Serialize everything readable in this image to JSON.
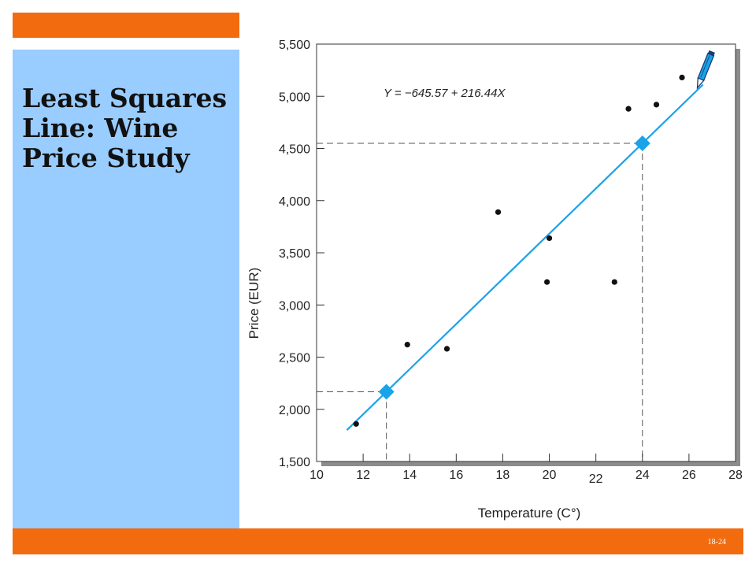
{
  "slide": {
    "title": "Least Squares Line: Wine Price Study",
    "page_number": "18-24",
    "colors": {
      "accent_bar": "#f26b0f",
      "left_panel": "#99ccff",
      "regression_line": "#1aa3e8"
    }
  },
  "chart_data": {
    "type": "scatter",
    "title": "",
    "xlabel": "Temperature (C°)",
    "ylabel": "Price (EUR)",
    "xlim": [
      10,
      28
    ],
    "ylim": [
      1500,
      5500
    ],
    "xticks": [
      10,
      12,
      14,
      16,
      18,
      20,
      22,
      24,
      26,
      28
    ],
    "xtick_labels": [
      "10",
      "12",
      "14",
      "16",
      "18",
      "20",
      "22",
      "24",
      "26",
      "28"
    ],
    "yticks": [
      1500,
      2000,
      2500,
      3000,
      3500,
      4000,
      4500,
      5000,
      5500
    ],
    "ytick_labels": [
      "1,500",
      "2,000",
      "2,500",
      "3,000",
      "3,500",
      "4,000",
      "4,500",
      "5,000",
      "5,500"
    ],
    "grid": false,
    "points": [
      {
        "x": 11.7,
        "y": 1860
      },
      {
        "x": 13.9,
        "y": 2620
      },
      {
        "x": 15.6,
        "y": 2580
      },
      {
        "x": 17.8,
        "y": 3890
      },
      {
        "x": 20.0,
        "y": 3640
      },
      {
        "x": 19.9,
        "y": 3220
      },
      {
        "x": 22.8,
        "y": 3220
      },
      {
        "x": 23.4,
        "y": 4880
      },
      {
        "x": 24.6,
        "y": 4920
      },
      {
        "x": 25.7,
        "y": 5180
      }
    ],
    "regression": {
      "equation": "Y = −645.57 + 216.44X",
      "intercept": -645.57,
      "slope": 216.44,
      "x_range": [
        11.3,
        26.6
      ],
      "highlight_points": [
        {
          "x": 13,
          "y": 2168
        },
        {
          "x": 24,
          "y": 4549
        }
      ]
    }
  }
}
